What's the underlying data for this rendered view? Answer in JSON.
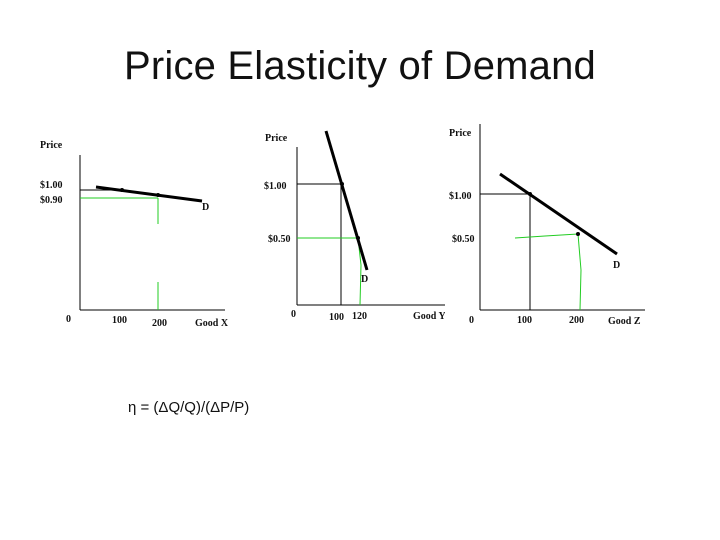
{
  "slide": {
    "title": "Price Elasticity of Demand",
    "formula": "η  = (ΔQ/Q)/(ΔP/P)"
  },
  "colors": {
    "demand_line": "#000000",
    "guide_black": "#000000",
    "guide_green": "#22cc22"
  },
  "chart_data": [
    {
      "type": "line",
      "ylabel": "Price",
      "xlabel": "Good X",
      "origin_label": "0",
      "x_ticks": [
        "100",
        "200"
      ],
      "y_ticks": [
        "$1.00",
        "$0.90"
      ],
      "series": [
        {
          "name": "D",
          "x": [
            100,
            200
          ],
          "y": [
            1.0,
            0.9
          ]
        }
      ]
    },
    {
      "type": "line",
      "ylabel": "Price",
      "xlabel": "Good Y",
      "origin_label": "0",
      "x_ticks": [
        "100",
        "120"
      ],
      "y_ticks": [
        "$1.00",
        "$0.50"
      ],
      "series": [
        {
          "name": "D",
          "x": [
            100,
            120
          ],
          "y": [
            1.0,
            0.5
          ]
        }
      ]
    },
    {
      "type": "line",
      "ylabel": "Price",
      "xlabel": "Good Z",
      "origin_label": "0",
      "x_ticks": [
        "100",
        "200"
      ],
      "y_ticks": [
        "$1.00",
        "$0.50"
      ],
      "series": [
        {
          "name": "D",
          "x": [
            100,
            200
          ],
          "y": [
            1.0,
            0.5
          ]
        }
      ]
    }
  ]
}
